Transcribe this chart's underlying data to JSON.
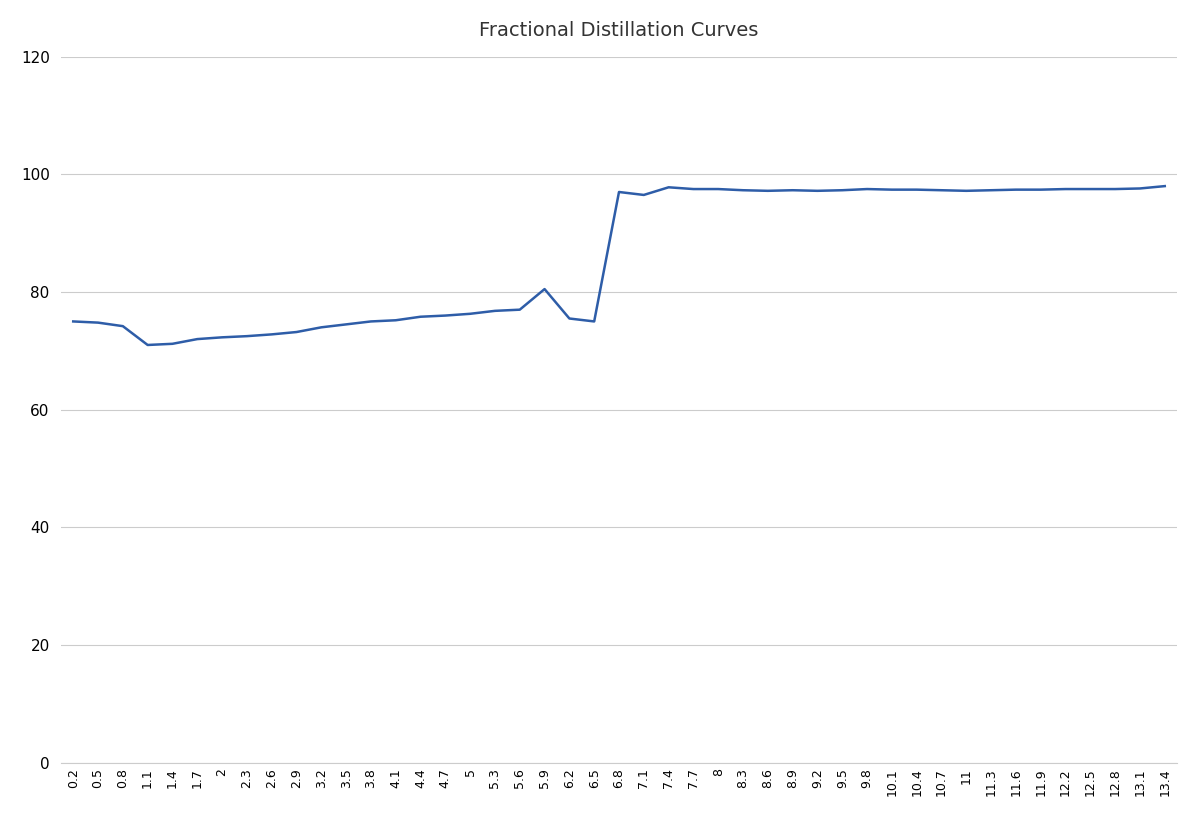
{
  "title": "Fractional Distillation Curves",
  "title_fontsize": 14,
  "line_color": "#2E5DA8",
  "line_width": 1.8,
  "background_color": "#ffffff",
  "ylim": [
    0,
    120
  ],
  "yticks": [
    0,
    20,
    40,
    60,
    80,
    100,
    120
  ],
  "grid_color": "#cccccc",
  "x_values": [
    0.2,
    0.5,
    0.8,
    1.1,
    1.4,
    1.7,
    2.0,
    2.3,
    2.6,
    2.9,
    3.2,
    3.5,
    3.8,
    4.1,
    4.4,
    4.7,
    5.0,
    5.3,
    5.6,
    5.9,
    6.2,
    6.5,
    6.8,
    7.1,
    7.4,
    7.7,
    8.0,
    8.3,
    8.6,
    8.9,
    9.2,
    9.5,
    9.8,
    10.1,
    10.4,
    10.7,
    11.0,
    11.3,
    11.6,
    11.9,
    12.2,
    12.5,
    12.8,
    13.1,
    13.4
  ],
  "y_values": [
    75.0,
    74.8,
    74.2,
    71.0,
    71.2,
    72.0,
    72.3,
    72.5,
    72.8,
    73.2,
    74.0,
    74.5,
    75.0,
    75.2,
    75.8,
    76.0,
    76.3,
    76.8,
    77.0,
    80.5,
    75.5,
    75.0,
    97.0,
    96.5,
    97.8,
    97.5,
    97.5,
    97.3,
    97.2,
    97.3,
    97.2,
    97.3,
    97.5,
    97.4,
    97.4,
    97.3,
    97.2,
    97.3,
    97.4,
    97.4,
    97.5,
    97.5,
    97.5,
    97.6,
    98.0
  ],
  "xtick_labels": [
    "0.2",
    "0.5",
    "0.8",
    "1.1",
    "1.4",
    "1.7",
    "2",
    "2.3",
    "2.6",
    "2.9",
    "3.2",
    "3.5",
    "3.8",
    "4.1",
    "4.4",
    "4.7",
    "5",
    "5.3",
    "5.6",
    "5.9",
    "6.2",
    "6.5",
    "6.8",
    "7.1",
    "7.4",
    "7.7",
    "8",
    "8.3",
    "8.6",
    "8.9",
    "9.2",
    "9.5",
    "9.8",
    "10.1",
    "10.4",
    "10.7",
    "11",
    "11.3",
    "11.6",
    "11.9",
    "12.2",
    "12.5",
    "12.8",
    "13.1",
    "13.4"
  ]
}
